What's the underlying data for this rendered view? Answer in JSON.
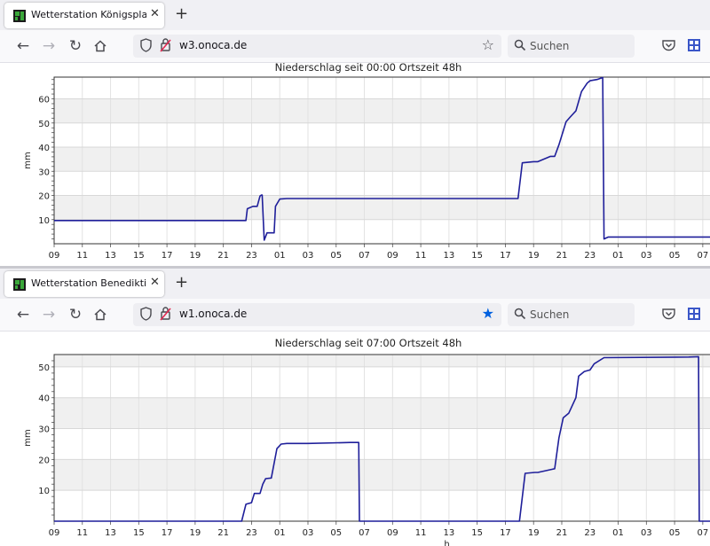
{
  "windows": [
    {
      "tab_title": "Wetterstation Königsplatz, Augsburg",
      "url": "w3.onoca.de",
      "search_placeholder": "Suchen",
      "bookmarked": false,
      "chart_data": {
        "type": "line",
        "title": "Niederschlag seit 00:00 Ortszeit 48h",
        "ylabel": "mm",
        "xlabel": "",
        "x_unit": "hour",
        "x_start": 9,
        "x_end": 57.4,
        "ylim": [
          0,
          69
        ],
        "yticks": [
          10,
          20,
          30,
          40,
          50,
          60
        ],
        "xtick_labels": [
          "09",
          "11",
          "13",
          "15",
          "17",
          "19",
          "21",
          "23",
          "01",
          "03",
          "05",
          "07",
          "09",
          "11",
          "13",
          "15",
          "17",
          "19",
          "21",
          "23",
          "01",
          "03",
          "05",
          "07"
        ],
        "grid": true,
        "series": [
          {
            "color": "#1f1f9a",
            "x": [
              9,
              22.6,
              22.7,
              23.1,
              23.4,
              23.6,
              23.7,
              23.75,
              23.9,
              24.1,
              24.6,
              24.7,
              25.0,
              25.5,
              41.9,
              42.2,
              43.0,
              43.3,
              44.2,
              44.5,
              44.8,
              45.3,
              45.6,
              46.0,
              46.4,
              46.8,
              47.0,
              47.5,
              47.9,
              48.0,
              48.3,
              57.4
            ],
            "y": [
              9.6,
              9.6,
              14.5,
              15.5,
              15.5,
              19.8,
              20.2,
              20.2,
              1.5,
              4.5,
              4.5,
              15.5,
              18.5,
              18.7,
              18.7,
              33.5,
              34.0,
              34.0,
              36.2,
              36.2,
              41.0,
              50.5,
              52.5,
              55.0,
              63.0,
              66.5,
              67.5,
              68.0,
              68.8,
              2.0,
              2.8,
              2.8
            ]
          }
        ]
      }
    },
    {
      "tab_title": "Wetterstation Benediktinerabtei",
      "url": "w1.onoca.de",
      "search_placeholder": "Suchen",
      "bookmarked": true,
      "chart_data": {
        "type": "line",
        "title": "Niederschlag seit 07:00 Ortszeit 48h",
        "ylabel": "mm",
        "xlabel": "h",
        "x_unit": "hour",
        "x_start": 9,
        "x_end": 57.4,
        "ylim": [
          0,
          54
        ],
        "yticks": [
          10,
          20,
          30,
          40,
          50
        ],
        "xtick_labels": [
          "09",
          "11",
          "13",
          "15",
          "17",
          "19",
          "21",
          "23",
          "01",
          "03",
          "05",
          "07",
          "09",
          "11",
          "13",
          "15",
          "17",
          "19",
          "21",
          "23",
          "01",
          "03",
          "05",
          "07"
        ],
        "grid": true,
        "series": [
          {
            "color": "#1f1f9a",
            "x": [
              9,
              22.3,
              22.6,
              23.0,
              23.2,
              23.6,
              23.8,
              24.0,
              24.4,
              24.8,
              25.1,
              25.5,
              27.0,
              30.0,
              30.6,
              30.65,
              42.0,
              42.4,
              43.1,
              43.3,
              44.3,
              44.5,
              44.8,
              45.1,
              45.5,
              46.0,
              46.2,
              46.6,
              47.0,
              47.3,
              48.0,
              54.0,
              54.7,
              54.75,
              57.4
            ],
            "y": [
              0,
              0,
              5.5,
              6.0,
              9.0,
              9.0,
              12.0,
              13.8,
              14.0,
              23.5,
              25.0,
              25.2,
              25.2,
              25.5,
              25.5,
              0,
              0,
              15.5,
              15.8,
              15.8,
              16.8,
              17.0,
              27.0,
              33.5,
              35.0,
              40.0,
              47.0,
              48.5,
              49.0,
              51.0,
              53.0,
              53.2,
              53.3,
              0,
              0
            ]
          }
        ]
      }
    }
  ]
}
